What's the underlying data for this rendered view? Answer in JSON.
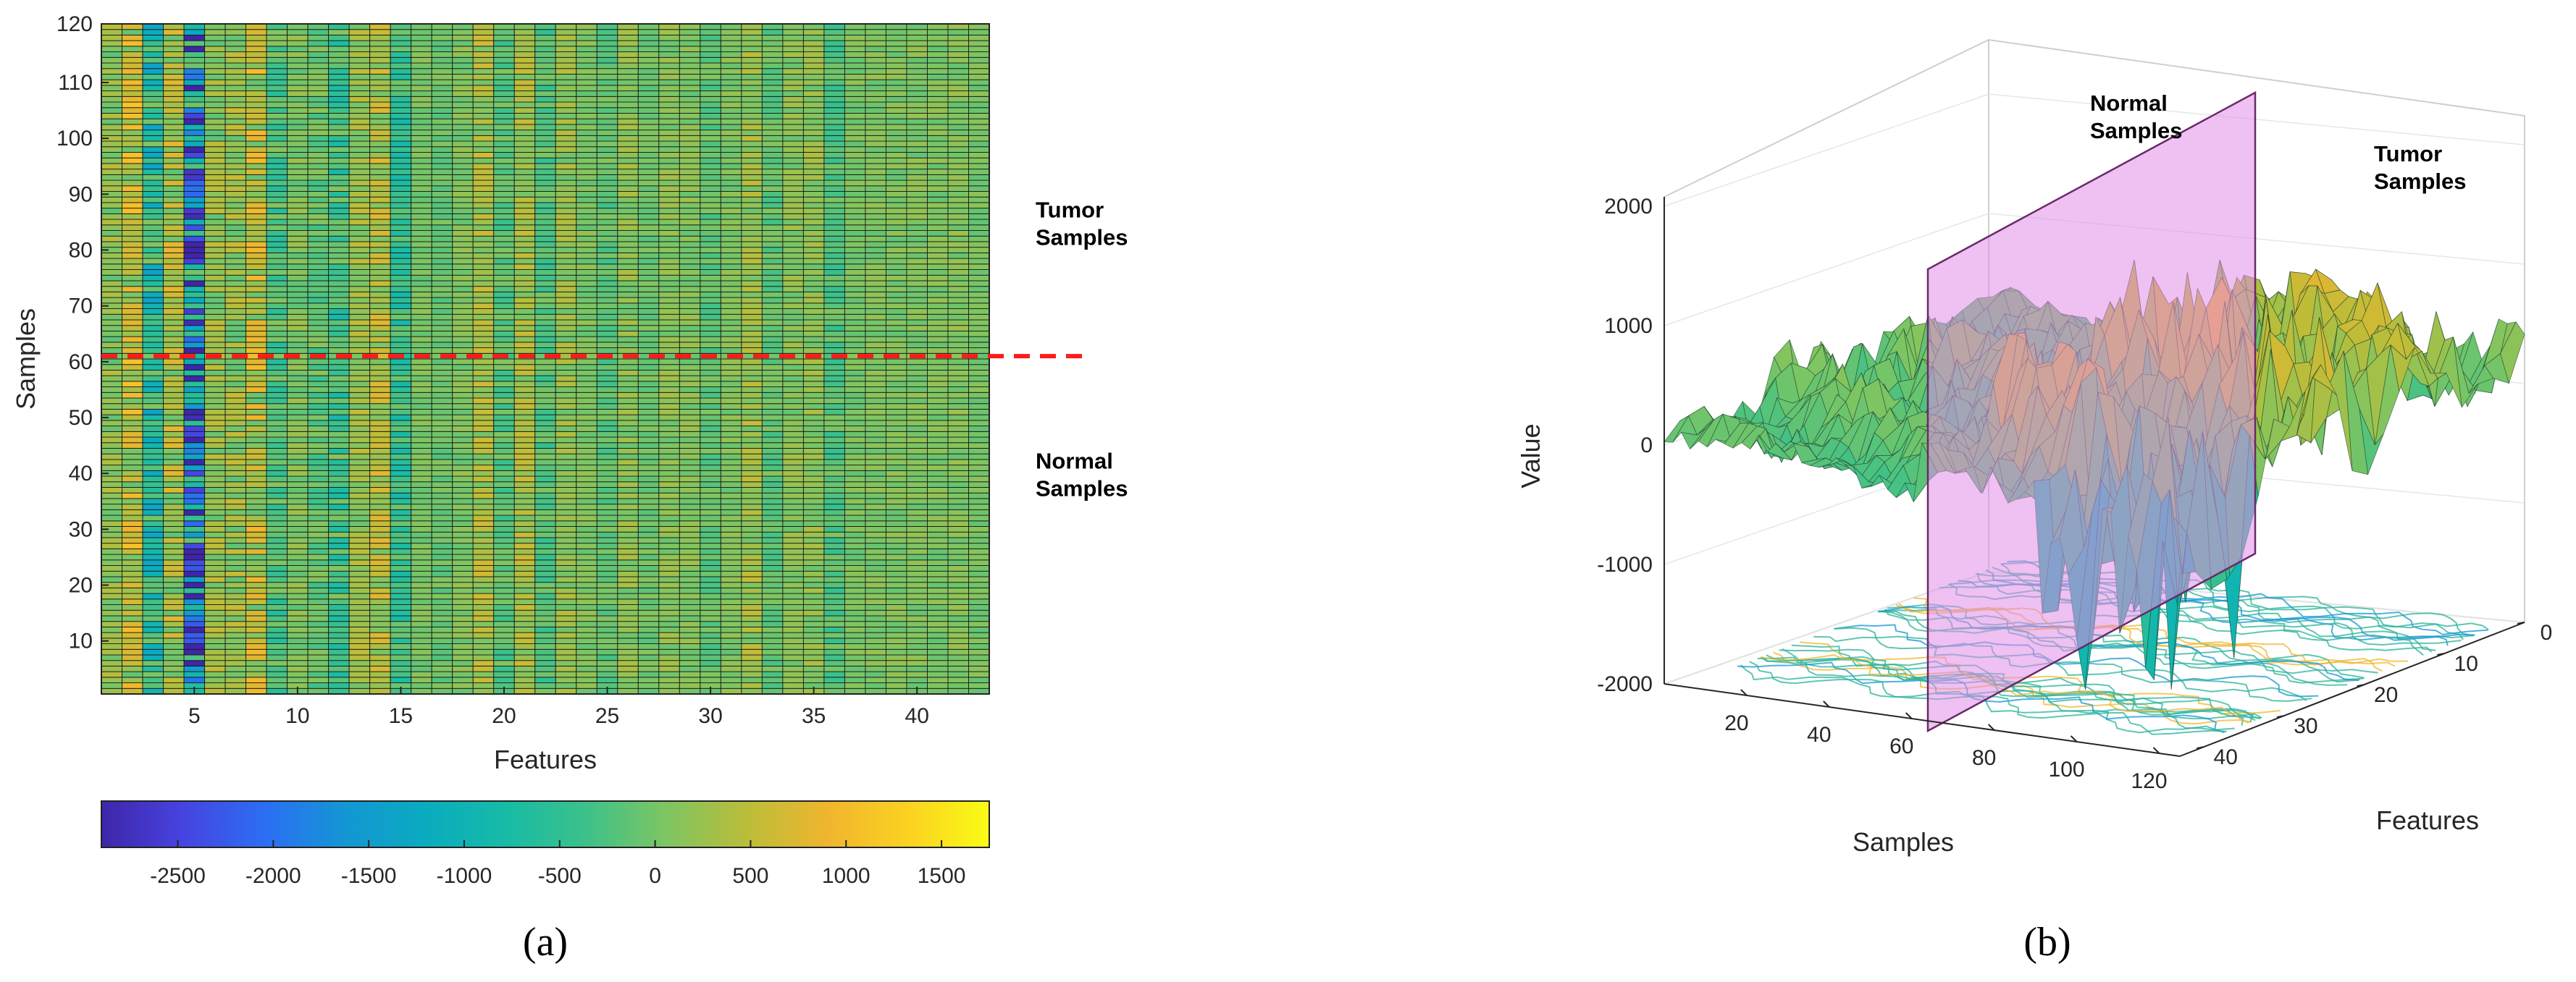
{
  "chart_data": [
    {
      "panel": "a",
      "type": "heatmap",
      "xlabel": "Features",
      "ylabel": "Samples",
      "x_ticks": [
        5,
        10,
        15,
        20,
        25,
        30,
        35,
        40
      ],
      "y_ticks": [
        10,
        20,
        30,
        40,
        50,
        60,
        70,
        80,
        90,
        100,
        110,
        120
      ],
      "xlim": [
        0.5,
        43.5
      ],
      "ylim": [
        0.5,
        120.5
      ],
      "n_features": 43,
      "n_samples": 120,
      "divider_sample": 61,
      "annotations": [
        {
          "lines": [
            "Tumor",
            "Samples"
          ],
          "at_sample": 83
        },
        {
          "lines": [
            "Normal",
            "Samples"
          ],
          "at_sample": 38
        }
      ],
      "feature_profile": [
        150,
        500,
        -650,
        350,
        -1800,
        200,
        250,
        450,
        -250,
        60,
        -100,
        -350,
        250,
        400,
        -450,
        20,
        -60,
        60,
        320,
        -180,
        280,
        -220,
        180,
        50,
        -130,
        150,
        -40,
        120,
        80,
        -120,
        60,
        260,
        -110,
        120,
        150,
        -200,
        30,
        60,
        50,
        60,
        50,
        90,
        20
      ],
      "colorbar": {
        "ticks": [
          -2500,
          -2000,
          -1500,
          -1000,
          -500,
          0,
          500,
          1000,
          1500
        ],
        "lim": [
          -2900,
          1750
        ],
        "colors": [
          "#3e26a8",
          "#4743e0",
          "#2c6df4",
          "#1496d4",
          "#0aabc0",
          "#17bba6",
          "#3cc18a",
          "#7ec562",
          "#bbbd39",
          "#f0b52e",
          "#fbd221",
          "#f9fb15"
        ]
      }
    },
    {
      "panel": "b",
      "type": "surface3d",
      "xlabel": "Samples",
      "ylabel": "Features",
      "zlabel": "Value",
      "x_ticks": [
        20,
        40,
        60,
        80,
        100,
        120
      ],
      "y_ticks": [
        0,
        10,
        20,
        30,
        40
      ],
      "z_ticks": [
        2000,
        1000,
        0,
        -1000,
        -2000
      ],
      "zlim": [
        -2000,
        2500
      ],
      "divider_sample": 61,
      "annotations": [
        {
          "lines": [
            "Normal",
            "Samples"
          ]
        },
        {
          "lines": [
            "Tumor",
            "Samples"
          ]
        }
      ],
      "divider_color": "#e18ce8"
    }
  ],
  "labels": {
    "panel_a": "(a)",
    "panel_b": "(b)"
  }
}
